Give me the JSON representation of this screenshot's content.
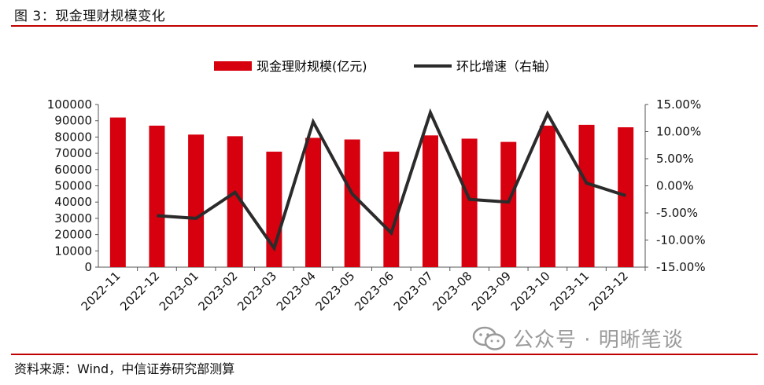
{
  "header": {
    "title": "图 3：现金理财规模变化"
  },
  "footer": {
    "source": "资料来源：Wind，中信证券研究部测算"
  },
  "watermark": {
    "brand_text": "公众号 · 明晰笔谈",
    "icon": "wechat-icon"
  },
  "colors": {
    "bar": "#d7000f",
    "line": "#2b2b2b",
    "rule": "#c00000"
  },
  "chart_data": {
    "type": "bar",
    "categories": [
      "2022-11",
      "2022-12",
      "2023-01",
      "2023-02",
      "2023-03",
      "2023-04",
      "2023-05",
      "2023-06",
      "2023-07",
      "2023-08",
      "2023-09",
      "2023-10",
      "2023-11",
      "2023-12"
    ],
    "series": [
      {
        "name": "现金理财规模(亿元)",
        "type": "bar",
        "axis": "left",
        "values": [
          92000,
          87000,
          81500,
          80500,
          71000,
          79500,
          78500,
          71000,
          81000,
          79000,
          77000,
          87000,
          87500,
          86000
        ]
      },
      {
        "name": "环比增速（右轴）",
        "type": "line",
        "axis": "right",
        "values": [
          null,
          -5.5,
          -6.0,
          -1.2,
          -11.5,
          11.8,
          -1.5,
          -8.7,
          13.5,
          -2.5,
          -3.0,
          13.3,
          0.5,
          -1.8
        ]
      }
    ],
    "left_axis": {
      "ylim": [
        0,
        100000
      ],
      "ticks": [
        "0",
        "10000",
        "20000",
        "30000",
        "40000",
        "50000",
        "60000",
        "70000",
        "80000",
        "90000",
        "100000"
      ]
    },
    "right_axis": {
      "ylim": [
        -15,
        15
      ],
      "ticks": [
        "-15.00%",
        "-10.00%",
        "-5.00%",
        "0.00%",
        "5.00%",
        "10.00%",
        "15.00%"
      ]
    },
    "legend_position": "top-center",
    "grid": false
  }
}
